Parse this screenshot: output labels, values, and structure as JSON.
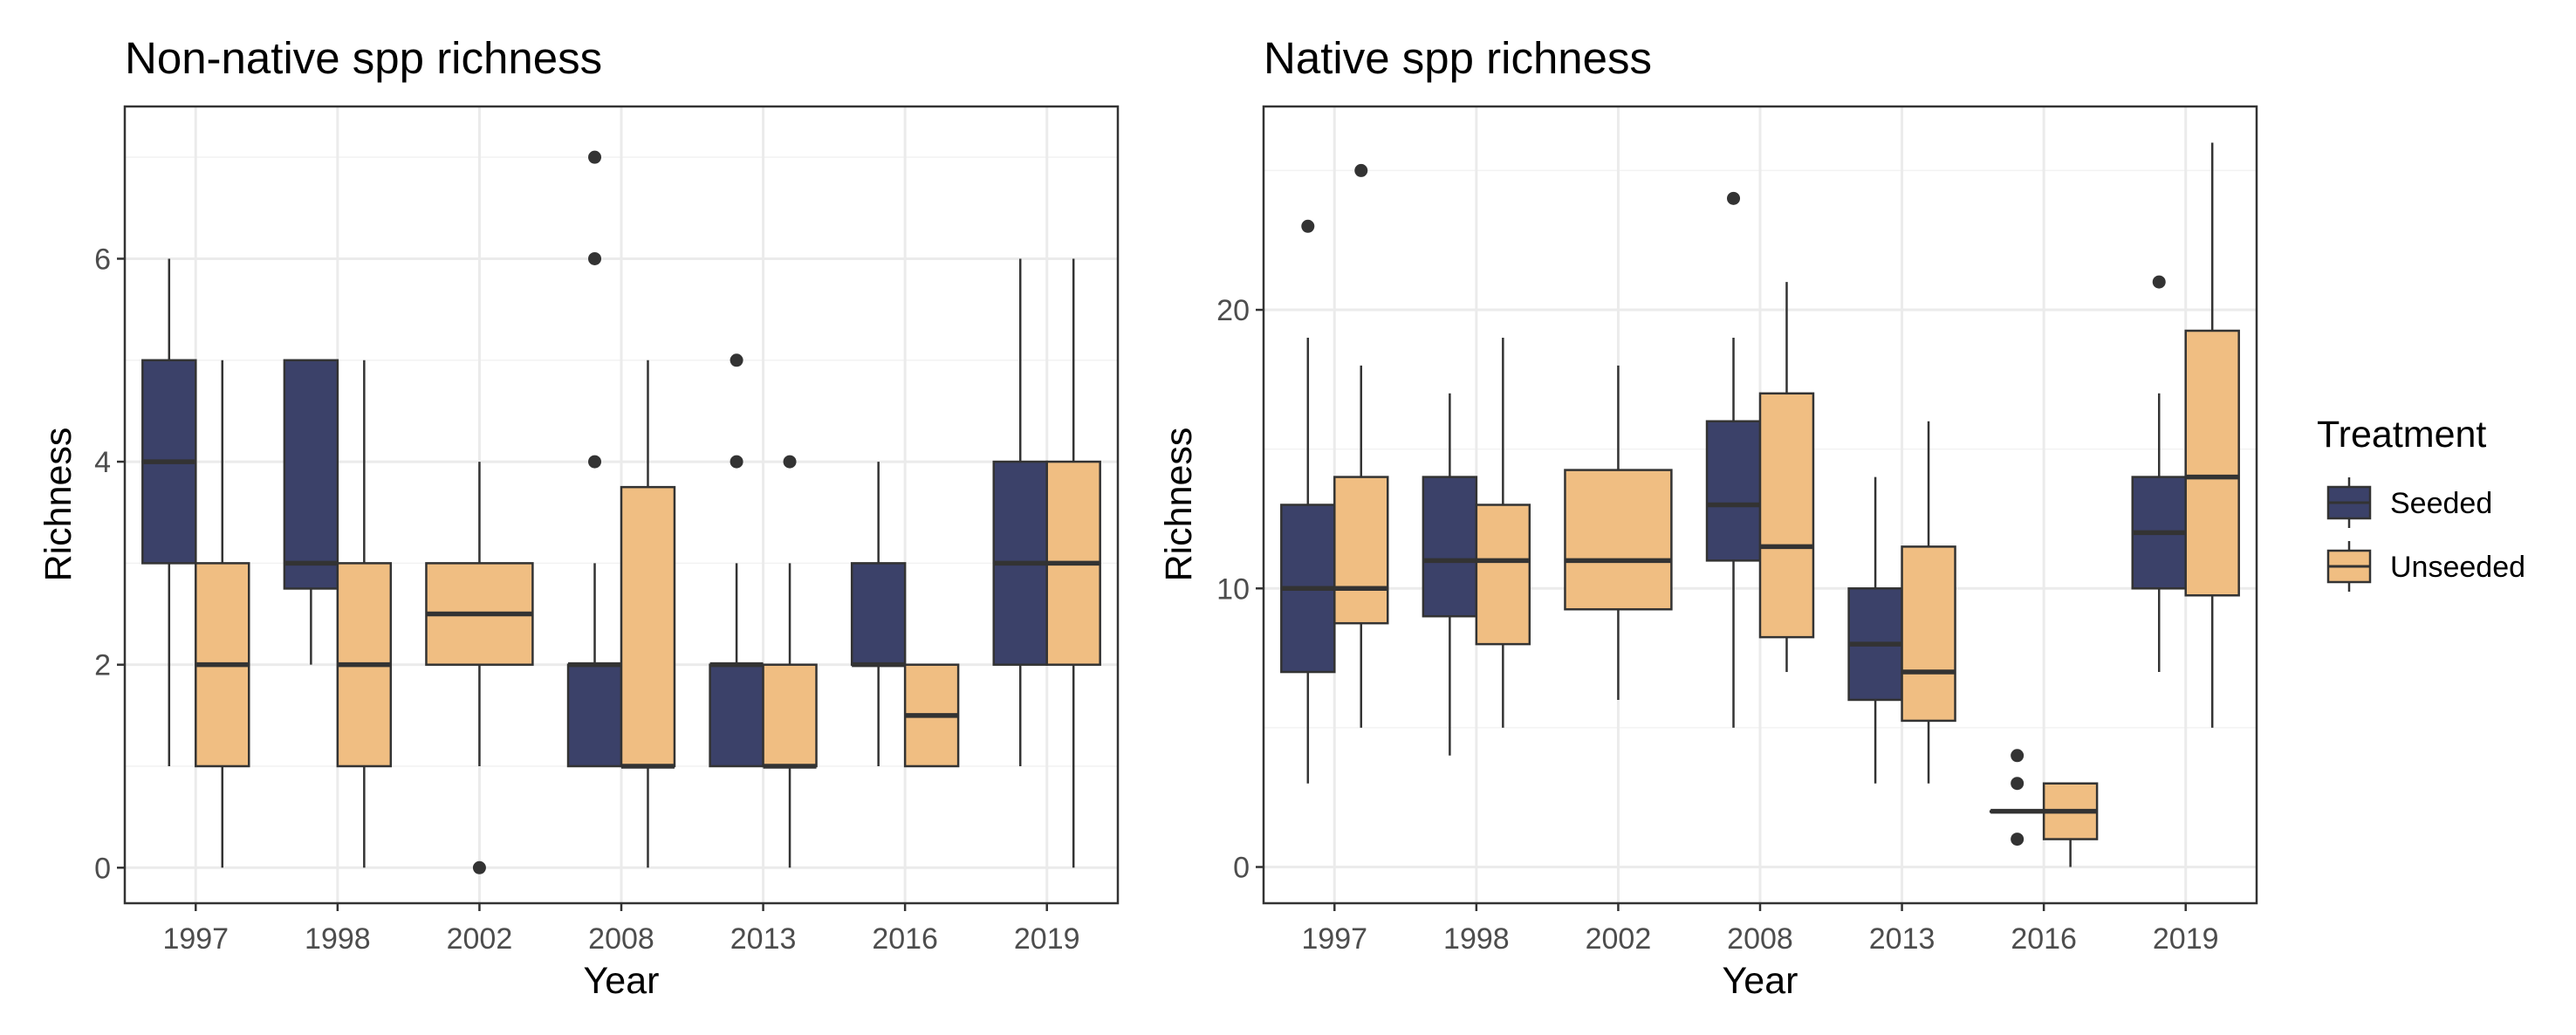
{
  "legend": {
    "title": "Treatment",
    "items": [
      {
        "label": "Seeded",
        "color": "#3b4169"
      },
      {
        "label": "Unseeded",
        "color": "#f0be82"
      }
    ]
  },
  "chart_data": [
    {
      "type": "boxplot",
      "title": "Non-native spp richness",
      "xlabel": "Year",
      "ylabel": "Richness",
      "ylim": [
        -0.35,
        7.5
      ],
      "yticks": [
        0,
        2,
        4,
        6
      ],
      "categories": [
        "1997",
        "1998",
        "2002",
        "2008",
        "2013",
        "2016",
        "2019"
      ],
      "grid": true,
      "series": [
        {
          "name": "Seeded",
          "color": "#3b4169",
          "boxes": [
            {
              "category": "1997",
              "min": 1,
              "q1": 3,
              "median": 4,
              "q3": 5,
              "max": 6,
              "outliers": []
            },
            {
              "category": "1998",
              "min": 2,
              "q1": 2.75,
              "median": 3,
              "q3": 5,
              "max": 5,
              "outliers": []
            },
            {
              "category": "2008",
              "min": 1,
              "q1": 1,
              "median": 2,
              "q3": 2,
              "max": 3,
              "outliers": [
                4,
                6,
                7
              ]
            },
            {
              "category": "2013",
              "min": 1,
              "q1": 1,
              "median": 2,
              "q3": 2,
              "max": 3,
              "outliers": [
                4,
                5
              ]
            },
            {
              "category": "2016",
              "min": 1,
              "q1": 2,
              "median": 2,
              "q3": 3,
              "max": 4,
              "outliers": []
            },
            {
              "category": "2019",
              "min": 1,
              "q1": 2,
              "median": 3,
              "q3": 4,
              "max": 6,
              "outliers": []
            }
          ]
        },
        {
          "name": "Unseeded",
          "color": "#f0be82",
          "boxes": [
            {
              "category": "1997",
              "min": 0,
              "q1": 1,
              "median": 2,
              "q3": 3,
              "max": 5,
              "outliers": []
            },
            {
              "category": "1998",
              "min": 0,
              "q1": 1,
              "median": 2,
              "q3": 3,
              "max": 5,
              "outliers": []
            },
            {
              "category": "2002",
              "min": 1,
              "q1": 2,
              "median": 2.5,
              "q3": 3,
              "max": 4,
              "outliers": [
                0
              ],
              "full": true
            },
            {
              "category": "2008",
              "min": 0,
              "q1": 1,
              "median": 1,
              "q3": 3.75,
              "max": 5,
              "outliers": []
            },
            {
              "category": "2013",
              "min": 0,
              "q1": 1,
              "median": 1,
              "q3": 2,
              "max": 3,
              "outliers": [
                4
              ]
            },
            {
              "category": "2016",
              "min": 1,
              "q1": 1,
              "median": 1.5,
              "q3": 2,
              "max": 2,
              "outliers": []
            },
            {
              "category": "2019",
              "min": 0,
              "q1": 2,
              "median": 3,
              "q3": 4,
              "max": 6,
              "outliers": []
            }
          ]
        }
      ]
    },
    {
      "type": "boxplot",
      "title": "Native spp richness",
      "xlabel": "Year",
      "ylabel": "Richness",
      "ylim": [
        -1.3,
        27.3
      ],
      "yticks": [
        0,
        10,
        20
      ],
      "categories": [
        "1997",
        "1998",
        "2002",
        "2008",
        "2013",
        "2016",
        "2019"
      ],
      "grid": true,
      "series": [
        {
          "name": "Seeded",
          "color": "#3b4169",
          "boxes": [
            {
              "category": "1997",
              "min": 3,
              "q1": 7,
              "median": 10,
              "q3": 13,
              "max": 19,
              "outliers": [
                23
              ]
            },
            {
              "category": "1998",
              "min": 4,
              "q1": 9,
              "median": 11,
              "q3": 14,
              "max": 17,
              "outliers": []
            },
            {
              "category": "2008",
              "min": 5,
              "q1": 11,
              "median": 13,
              "q3": 16,
              "max": 19,
              "outliers": [
                24
              ]
            },
            {
              "category": "2013",
              "min": 3,
              "q1": 6,
              "median": 8,
              "q3": 10,
              "max": 14,
              "outliers": []
            },
            {
              "category": "2016",
              "min": 2,
              "q1": 2,
              "median": 2,
              "q3": 2,
              "max": 2,
              "outliers": [
                1,
                3,
                4
              ]
            },
            {
              "category": "2019",
              "min": 7,
              "q1": 10,
              "median": 12,
              "q3": 14,
              "max": 17,
              "outliers": [
                21
              ]
            }
          ]
        },
        {
          "name": "Unseeded",
          "color": "#f0be82",
          "boxes": [
            {
              "category": "1997",
              "min": 5,
              "q1": 8.75,
              "median": 10,
              "q3": 14,
              "max": 18,
              "outliers": [
                25
              ]
            },
            {
              "category": "1998",
              "min": 5,
              "q1": 8,
              "median": 11,
              "q3": 13,
              "max": 19,
              "outliers": []
            },
            {
              "category": "2002",
              "min": 6,
              "q1": 9.25,
              "median": 11,
              "q3": 14.25,
              "max": 18,
              "outliers": [],
              "full": true
            },
            {
              "category": "2008",
              "min": 7,
              "q1": 8.25,
              "median": 11.5,
              "q3": 17,
              "max": 21,
              "outliers": []
            },
            {
              "category": "2013",
              "min": 3,
              "q1": 5.25,
              "median": 7,
              "q3": 11.5,
              "max": 16,
              "outliers": []
            },
            {
              "category": "2016",
              "min": 0,
              "q1": 1,
              "median": 2,
              "q3": 3,
              "max": 3,
              "outliers": []
            },
            {
              "category": "2019",
              "min": 5,
              "q1": 9.75,
              "median": 14,
              "q3": 19.25,
              "max": 26,
              "outliers": []
            }
          ]
        }
      ]
    }
  ]
}
